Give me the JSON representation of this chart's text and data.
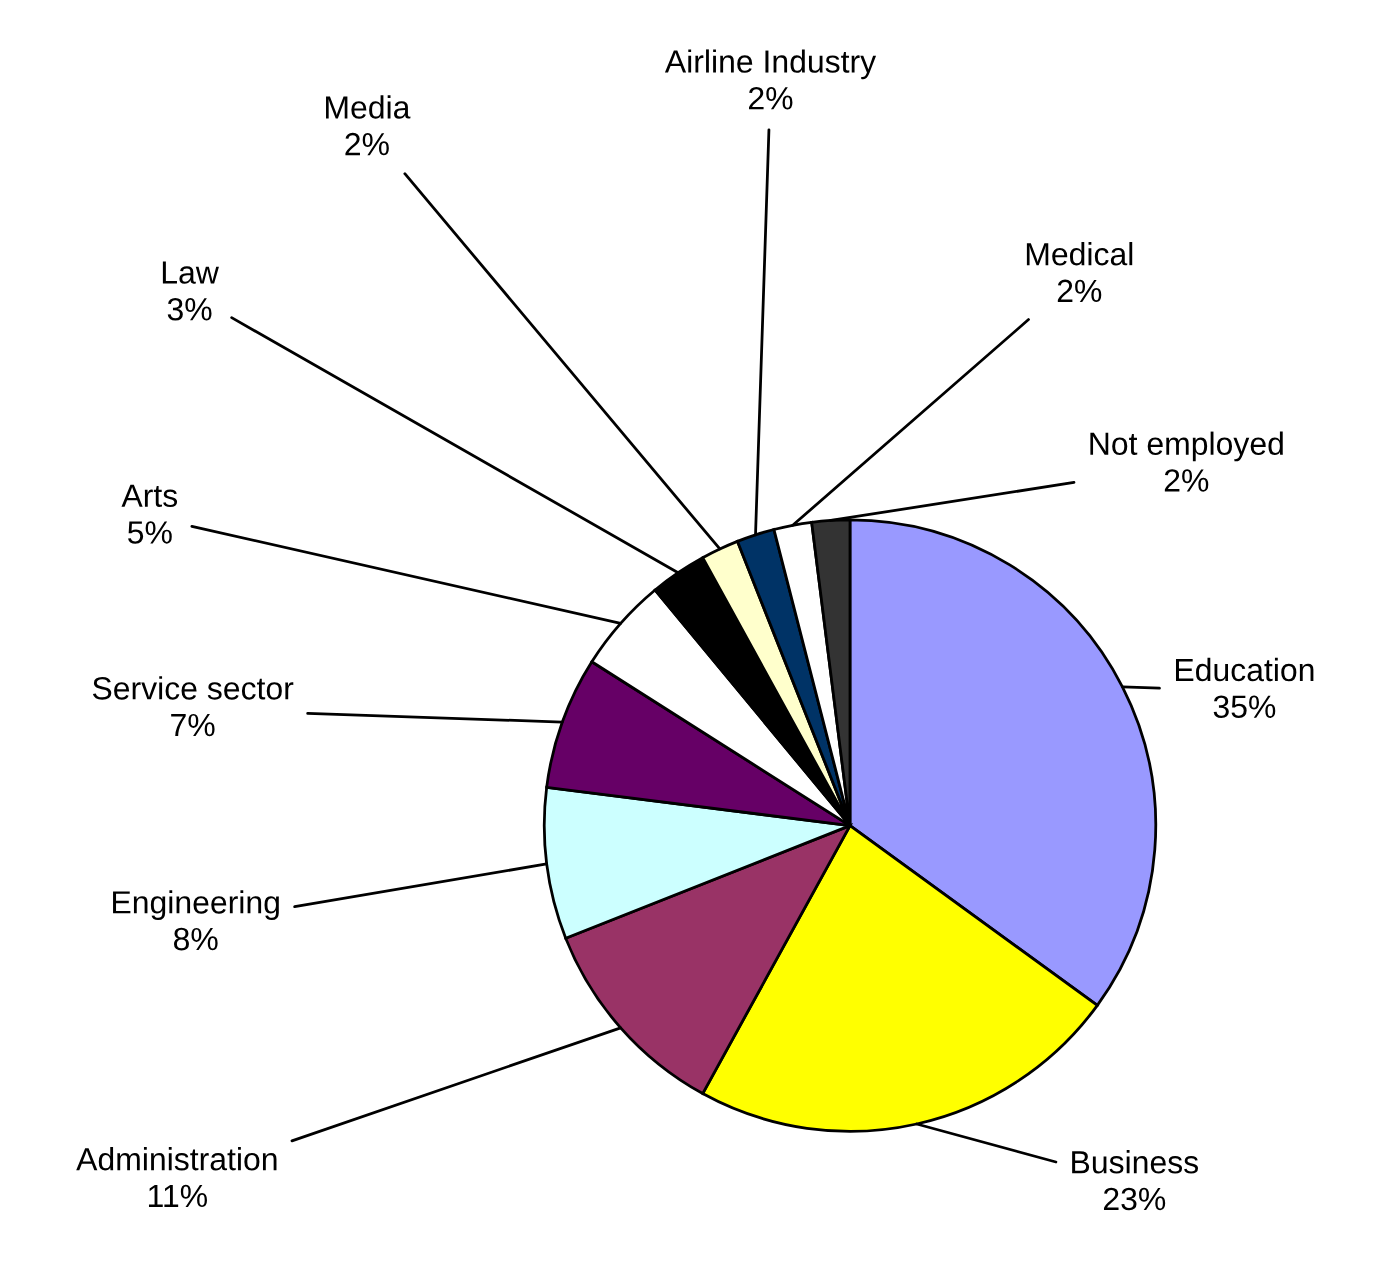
{
  "chart_data": {
    "type": "pie",
    "categories": [
      "Education",
      "Business",
      "Administration",
      "Engineering",
      "Service sector",
      "Arts",
      "Law",
      "Media",
      "Airline Industry",
      "Medical",
      "Not employed"
    ],
    "values": [
      35,
      23,
      11,
      8,
      7,
      5,
      3,
      2,
      2,
      2,
      2
    ],
    "value_labels": [
      "35%",
      "23%",
      "11%",
      "8%",
      "7%",
      "5%",
      "3%",
      "2%",
      "2%",
      "2%",
      "2%"
    ],
    "colors": [
      "#9999ff",
      "#ffff00",
      "#993366",
      "#ccffff",
      "#660066",
      "#ffffff",
      "#000000",
      "#ffffcc",
      "#003366",
      "#ffffff",
      "#333333"
    ]
  }
}
